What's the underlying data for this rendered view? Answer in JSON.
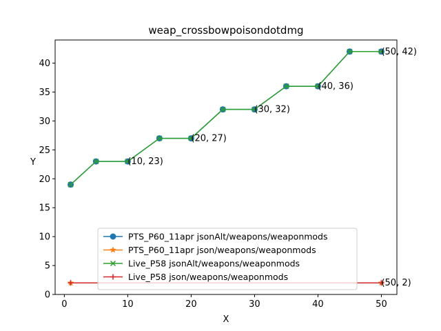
{
  "chart_data": {
    "type": "line",
    "title": "weap_crossbowpoisondotdmg",
    "xlabel": "X",
    "ylabel": "Y",
    "xlim": [
      -1.45,
      52.45
    ],
    "ylim": [
      0,
      44.0
    ],
    "xticks": [
      0,
      10,
      20,
      30,
      40,
      50
    ],
    "yticks": [
      0,
      5,
      10,
      15,
      20,
      25,
      30,
      35,
      40
    ],
    "grid": false,
    "legend_position": "lower-center",
    "series": [
      {
        "name": "PTS_P60_11apr jsonAlt/weapons/weaponmods",
        "color": "#1f77b4",
        "marker": "circle",
        "x": [
          1,
          5,
          10,
          15,
          20,
          25,
          30,
          35,
          40,
          45,
          50
        ],
        "y": [
          19,
          23,
          23,
          27,
          27,
          32,
          32,
          36,
          36,
          42,
          42
        ]
      },
      {
        "name": "PTS_P60_11apr json/weapons/weaponmods",
        "color": "#ff7f0e",
        "marker": "star",
        "x": [
          1,
          50
        ],
        "y": [
          2,
          2
        ]
      },
      {
        "name": "Live_P58 jsonAlt/weapons/weaponmods",
        "color": "#2ca02c",
        "marker": "x",
        "x": [
          1,
          5,
          10,
          15,
          20,
          25,
          30,
          35,
          40,
          45,
          50
        ],
        "y": [
          19,
          23,
          23,
          27,
          27,
          32,
          32,
          36,
          36,
          42,
          42
        ]
      },
      {
        "name": "Live_P58 json/weapons/weaponmods",
        "color": "#d62728",
        "marker": "plus",
        "x": [
          1,
          50
        ],
        "y": [
          2,
          2
        ]
      }
    ],
    "annotations": [
      {
        "text": "(10, 23)",
        "x": 10,
        "y": 23
      },
      {
        "text": "(20, 27)",
        "x": 20,
        "y": 27
      },
      {
        "text": "(30, 32)",
        "x": 30,
        "y": 32
      },
      {
        "text": "(40, 36)",
        "x": 40,
        "y": 36
      },
      {
        "text": "(50, 42)",
        "x": 50,
        "y": 42
      },
      {
        "text": "(50, 2)",
        "x": 50,
        "y": 2
      }
    ]
  }
}
